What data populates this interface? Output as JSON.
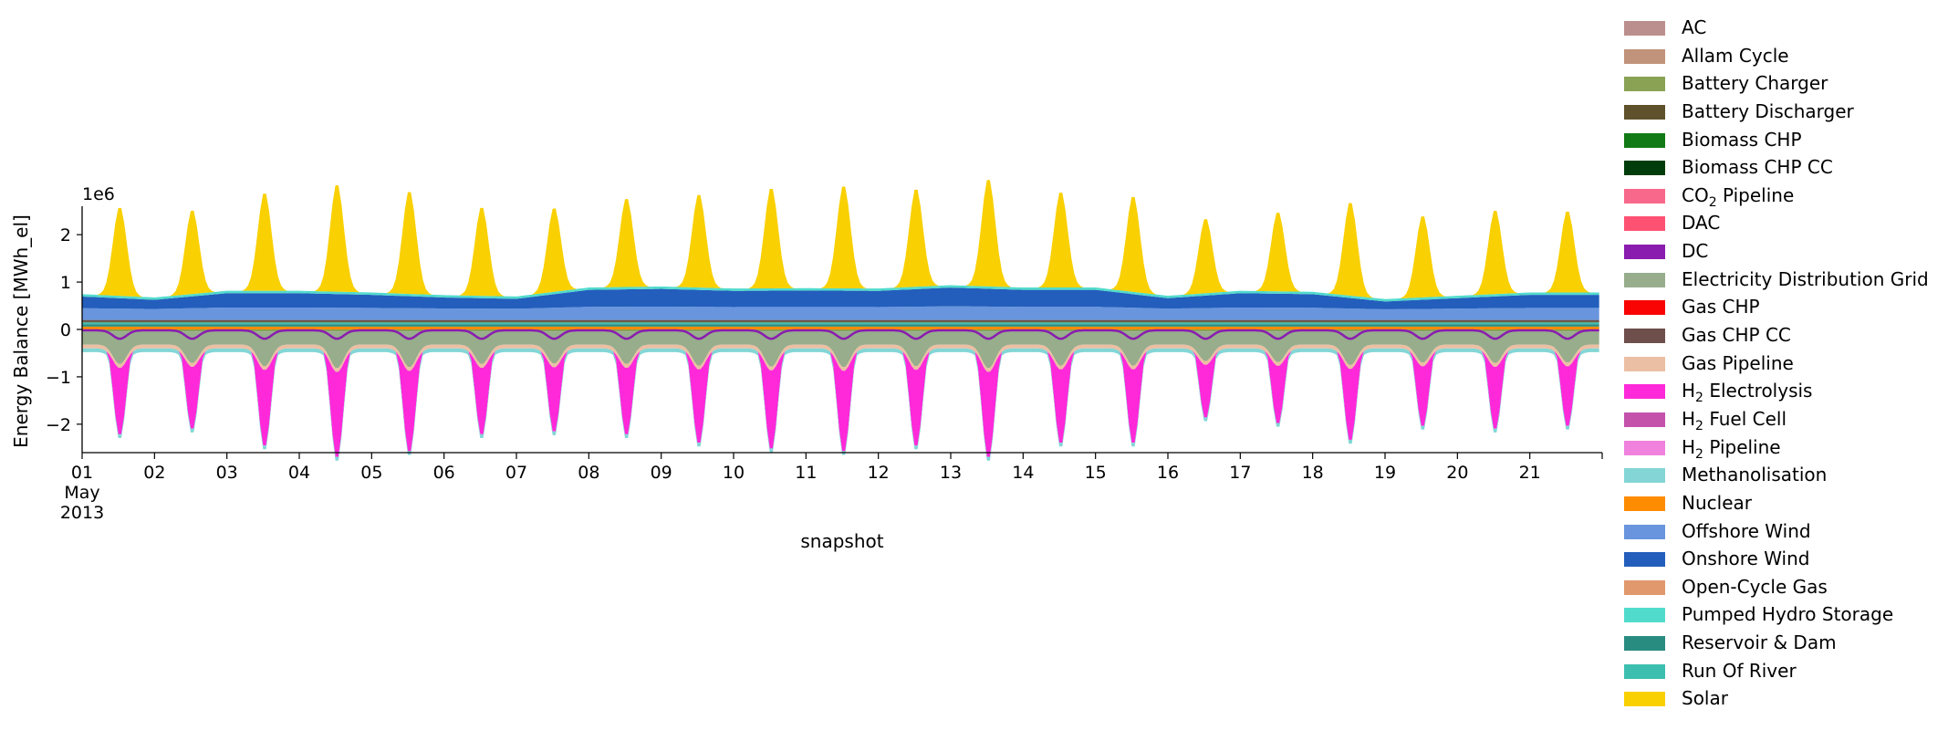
{
  "chart_data": {
    "type": "area",
    "ylabel": "Energy Balance [MWh_el]",
    "xlabel": "snapshot",
    "y_offset_label": "1e6",
    "ylim": [
      -2.6,
      2.6
    ],
    "y_ticks": [
      {
        "value": 2,
        "label": "2"
      },
      {
        "value": 1,
        "label": "1"
      },
      {
        "value": 0,
        "label": "0"
      },
      {
        "value": -1,
        "label": "−1"
      },
      {
        "value": -2,
        "label": "−2"
      }
    ],
    "x_start": "2013-05-01",
    "x_end": "2013-05-21 23:00",
    "x_tick_labels": [
      "01",
      "02",
      "03",
      "04",
      "05",
      "06",
      "07",
      "08",
      "09",
      "10",
      "11",
      "12",
      "13",
      "14",
      "15",
      "16",
      "17",
      "18",
      "19",
      "20",
      "21"
    ],
    "x_first_tick_sublabels": [
      "May",
      "2013"
    ],
    "solar_daily_peak": [
      1.9,
      1.8,
      2.1,
      2.3,
      2.2,
      1.9,
      1.8,
      1.9,
      2.0,
      2.15,
      2.2,
      2.1,
      2.3,
      2.05,
      2.05,
      1.6,
      1.7,
      2.0,
      1.75,
      1.8,
      1.75
    ],
    "h2_electrolysis_daily_min": [
      -1.9,
      -1.8,
      -2.1,
      -2.3,
      -2.2,
      -1.9,
      -1.85,
      -1.9,
      -2.05,
      -2.15,
      -2.2,
      -2.1,
      -2.3,
      -2.05,
      -2.05,
      -1.6,
      -1.7,
      -2.0,
      -1.75,
      -1.8,
      -1.75
    ],
    "onshore_wind_daily_top": [
      0.45,
      0.35,
      0.55,
      0.55,
      0.5,
      0.42,
      0.38,
      0.65,
      0.68,
      0.62,
      0.63,
      0.62,
      0.72,
      0.65,
      0.65,
      0.4,
      0.55,
      0.52,
      0.3,
      0.4,
      0.5
    ],
    "series": [
      {
        "name": "AC",
        "color": "#bc8f8f"
      },
      {
        "name": "Allam Cycle",
        "color": "#c0937a"
      },
      {
        "name": "Battery Charger",
        "color": "#89a254"
      },
      {
        "name": "Battery Discharger",
        "color": "#5e512b"
      },
      {
        "name": "Biomass CHP",
        "color": "#127a16"
      },
      {
        "name": "Biomass CHP CC",
        "color": "#003d0a"
      },
      {
        "name": "CO2 Pipeline",
        "color": "#f7688a",
        "label_main": "CO",
        "label_sub": "2",
        "label_tail": " Pipeline"
      },
      {
        "name": "DAC",
        "color": "#ff5272"
      },
      {
        "name": "DC",
        "color": "#8a1caf"
      },
      {
        "name": "Electricity Distribution Grid",
        "color": "#97ad8c"
      },
      {
        "name": "Gas CHP",
        "color": "#f90303"
      },
      {
        "name": "Gas CHP CC",
        "color": "#6e4f4b"
      },
      {
        "name": "Gas Pipeline",
        "color": "#ebbfa3"
      },
      {
        "name": "H2 Electrolysis",
        "color": "#ff29d9",
        "label_main": "H",
        "label_sub": "2",
        "label_tail": " Electrolysis"
      },
      {
        "name": "H2 Fuel Cell",
        "color": "#c452ab",
        "label_main": "H",
        "label_sub": "2",
        "label_tail": " Fuel Cell"
      },
      {
        "name": "H2 Pipeline",
        "color": "#f081dc",
        "label_main": "H",
        "label_sub": "2",
        "label_tail": " Pipeline"
      },
      {
        "name": "Methanolisation",
        "color": "#83d6d5"
      },
      {
        "name": "Nuclear",
        "color": "#ff8c00"
      },
      {
        "name": "Offshore Wind",
        "color": "#6895dd"
      },
      {
        "name": "Onshore Wind",
        "color": "#235ebc"
      },
      {
        "name": "Open-Cycle Gas",
        "color": "#e0986c"
      },
      {
        "name": "Pumped Hydro Storage",
        "color": "#51dbcc"
      },
      {
        "name": "Reservoir & Dam",
        "color": "#298c81"
      },
      {
        "name": "Run Of River",
        "color": "#3dbfb0"
      },
      {
        "name": "Solar",
        "color": "#f9d002"
      }
    ]
  }
}
